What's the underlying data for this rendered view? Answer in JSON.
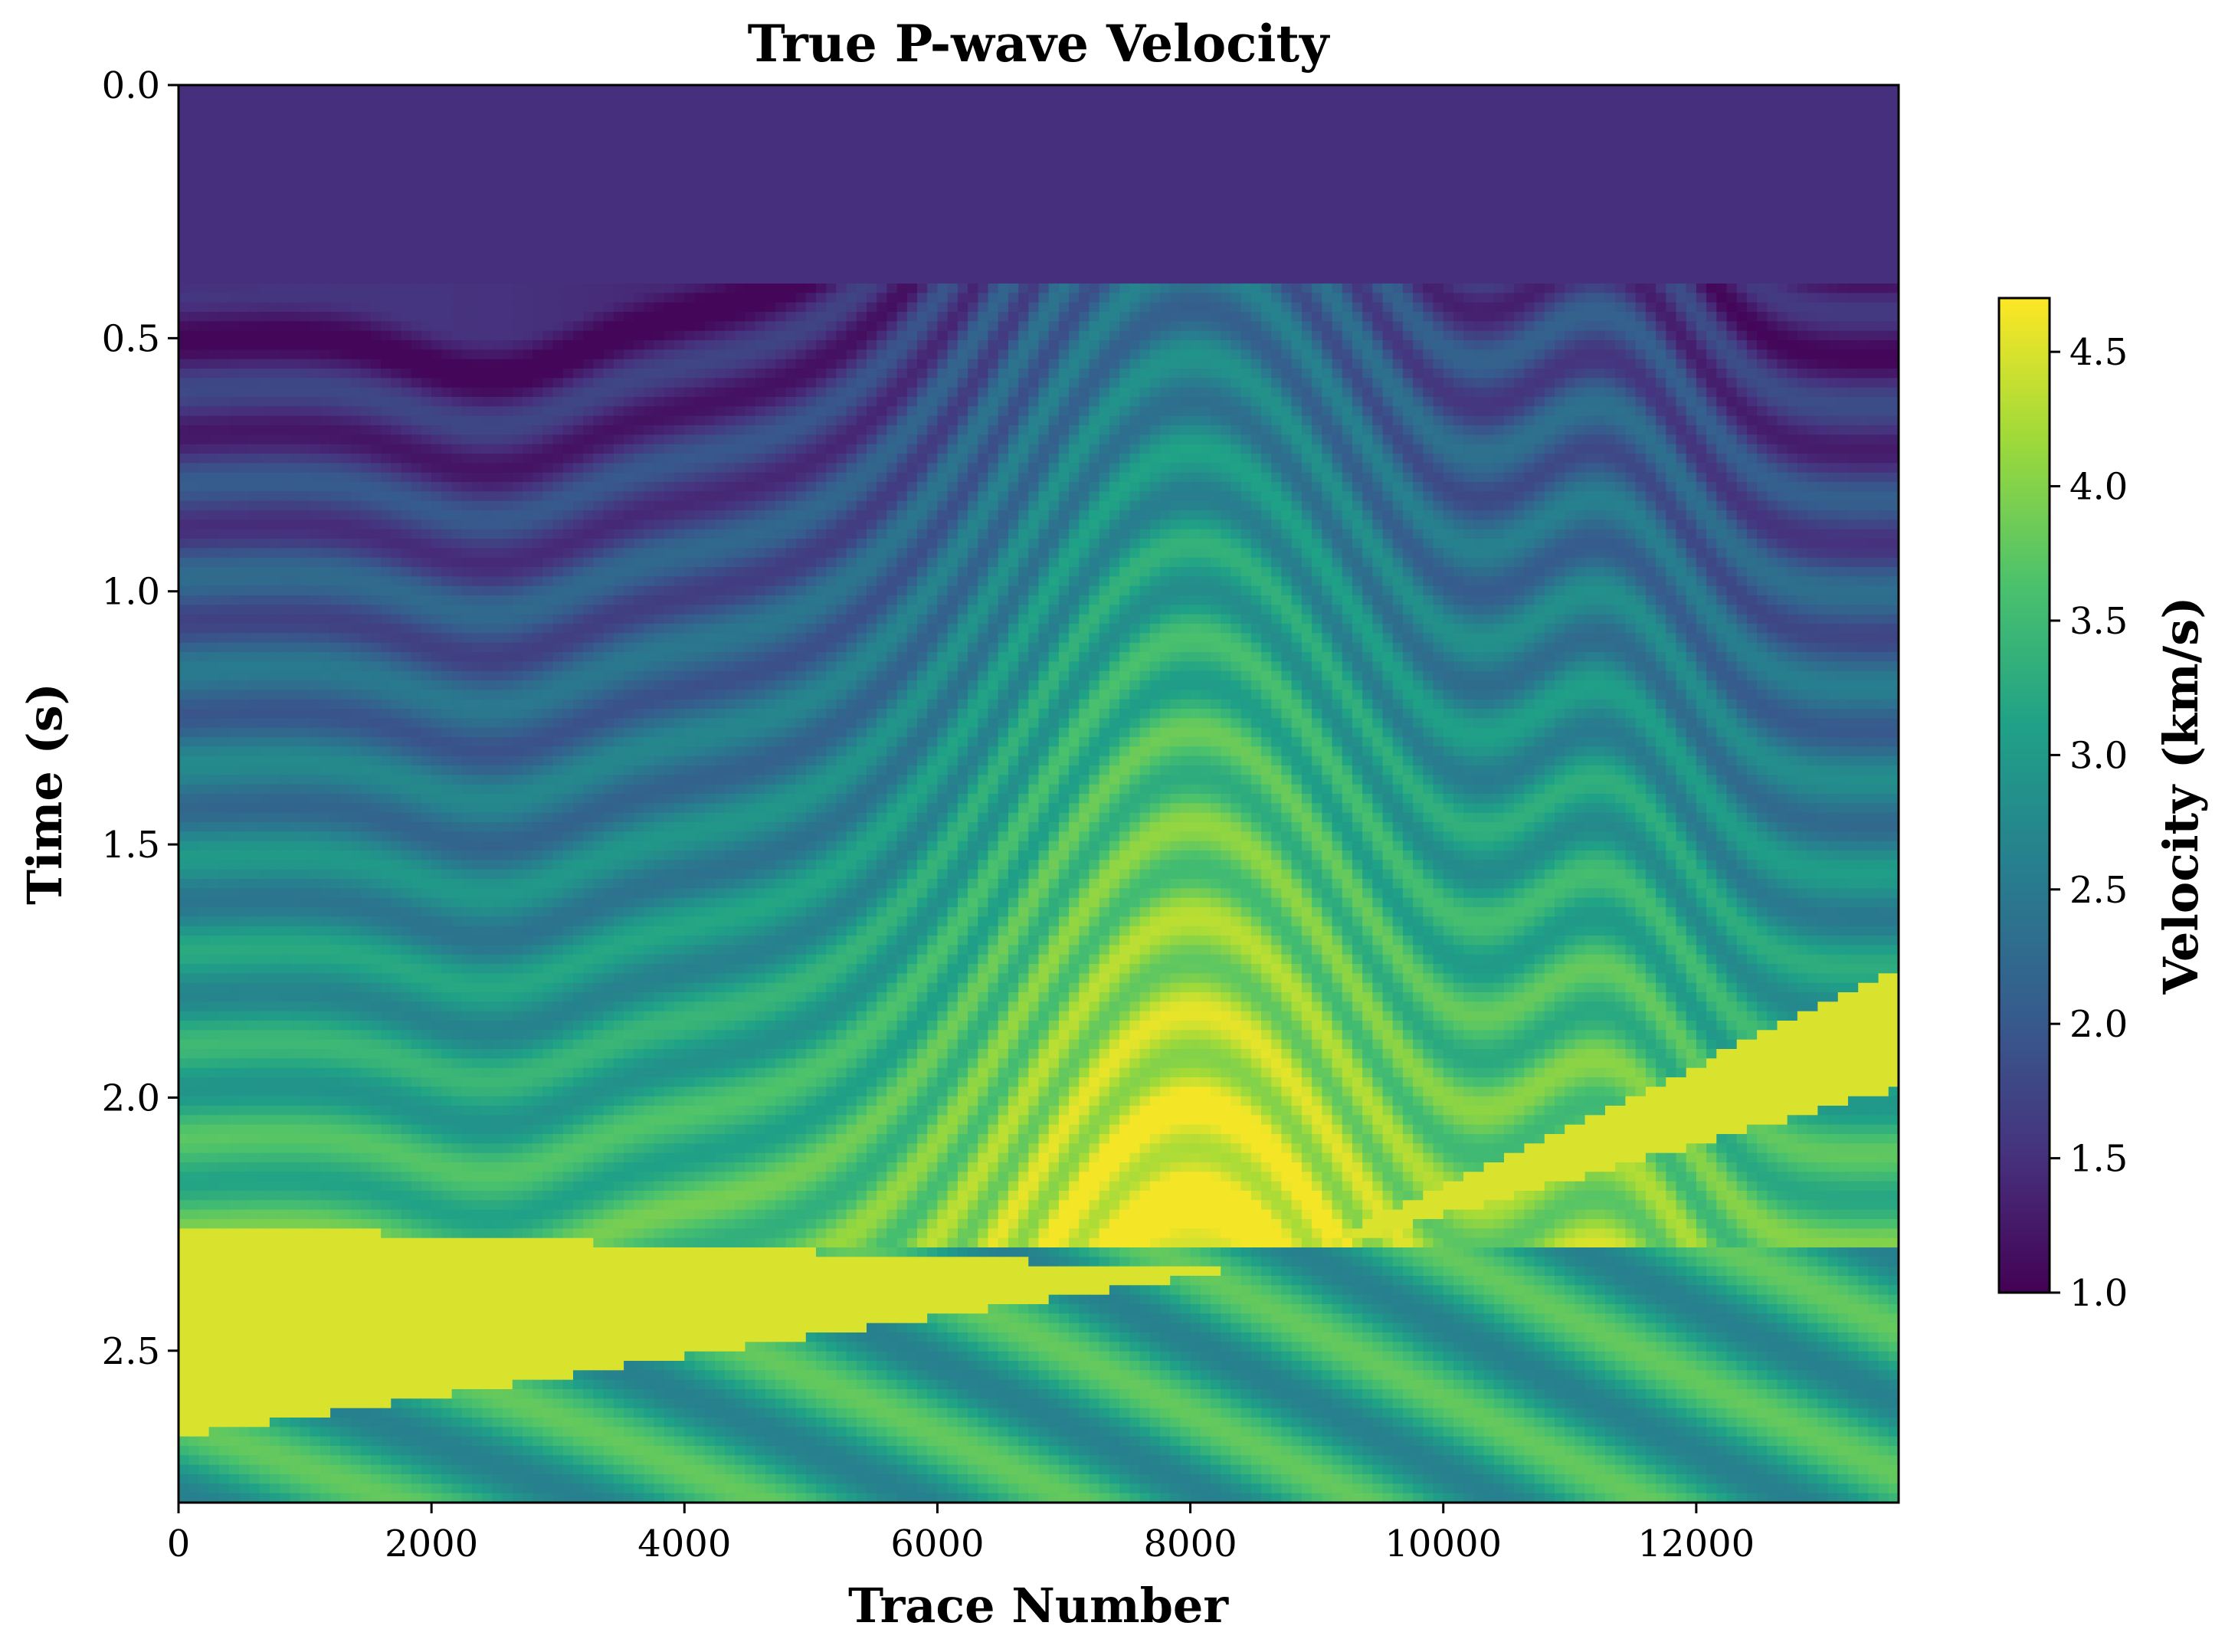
{
  "chart_data": {
    "type": "heatmap",
    "title": "True P-wave Velocity",
    "xlabel": "Trace Number",
    "ylabel": "Time (s)",
    "xlim": [
      0,
      13600
    ],
    "ylim": [
      2.8,
      0.0
    ],
    "xticks": [
      "0",
      "2000",
      "4000",
      "6000",
      "8000",
      "10000",
      "12000"
    ],
    "yticks": [
      "0.0",
      "0.5",
      "1.0",
      "1.5",
      "2.0",
      "2.5"
    ],
    "colorbar": {
      "label": "Velocity (km/s)",
      "range": [
        1.0,
        4.7
      ],
      "ticks": [
        "1.0",
        "1.5",
        "2.0",
        "2.5",
        "3.0",
        "3.5",
        "4.0",
        "4.5"
      ],
      "colormap": "viridis"
    },
    "water_layer": {
      "time_end": 0.4,
      "velocity": 1.5
    },
    "salt_body_velocity": 4.5
  }
}
